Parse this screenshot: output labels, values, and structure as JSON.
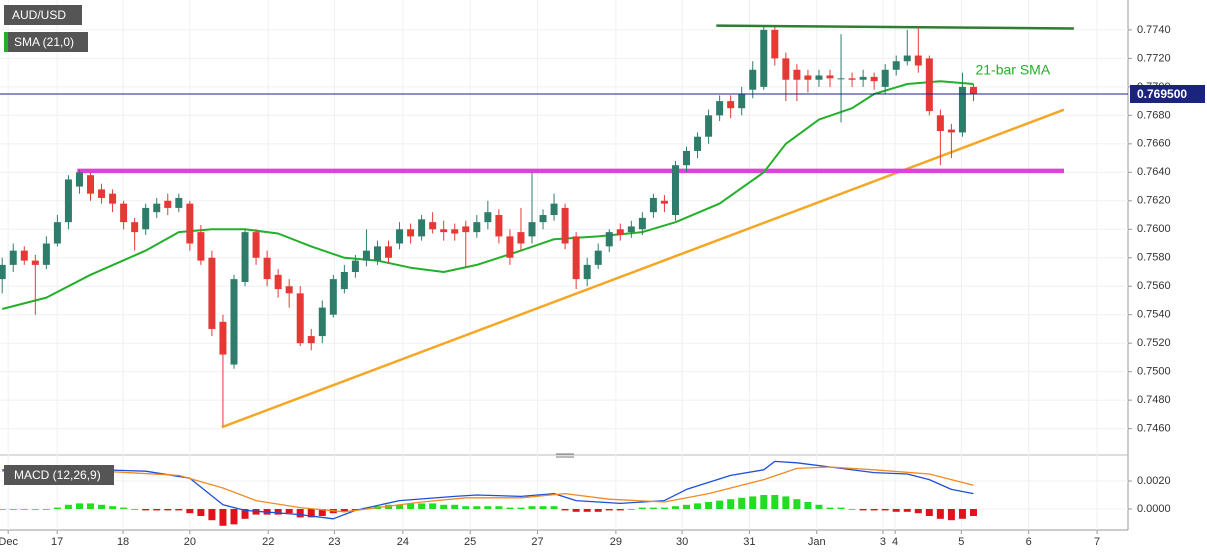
{
  "chart_data": {
    "type": "candlestick",
    "title": "AUD/USD",
    "indicator_label": "SMA (21,0)",
    "annotation": "21-bar SMA",
    "up_color": "#2e7d6b",
    "down_color": "#e53935",
    "grid": true,
    "xlim": [
      -0.2,
      102
    ],
    "xticks": [
      {
        "value": 0.54,
        "label": "Dec"
      },
      {
        "value": 4.98,
        "label": "17"
      },
      {
        "value": 10.95,
        "label": "18"
      },
      {
        "value": 17,
        "label": "20"
      },
      {
        "value": 24.1,
        "label": "22"
      },
      {
        "value": 30.1,
        "label": "23"
      },
      {
        "value": 36.3,
        "label": "24"
      },
      {
        "value": 42.4,
        "label": "25"
      },
      {
        "value": 48.5,
        "label": "27"
      },
      {
        "value": 55.6,
        "label": "29"
      },
      {
        "value": 61.6,
        "label": "30"
      },
      {
        "value": 67.7,
        "label": "31"
      },
      {
        "value": 73.8,
        "label": "Jan"
      },
      {
        "value": 79.8,
        "label": "3"
      },
      {
        "value": 80.9,
        "label": "4"
      },
      {
        "value": 86.9,
        "label": "5"
      },
      {
        "value": 93,
        "label": "6"
      },
      {
        "value": 99.2,
        "label": "7"
      }
    ],
    "ylim": [
      0.7445,
      0.7761
    ],
    "yticks": [
      {
        "value": 0.774,
        "label": "0.7740"
      },
      {
        "value": 0.772,
        "label": "0.7720"
      },
      {
        "value": 0.77,
        "label": "0.7700"
      },
      {
        "value": 0.768,
        "label": "0.7680"
      },
      {
        "value": 0.766,
        "label": "0.7660"
      },
      {
        "value": 0.764,
        "label": "0.7640"
      },
      {
        "value": 0.762,
        "label": "0.7620"
      },
      {
        "value": 0.76,
        "label": "0.7600"
      },
      {
        "value": 0.758,
        "label": "0.7580"
      },
      {
        "value": 0.756,
        "label": "0.7560"
      },
      {
        "value": 0.754,
        "label": "0.7540"
      },
      {
        "value": 0.752,
        "label": "0.7520"
      },
      {
        "value": 0.75,
        "label": "0.7500"
      },
      {
        "value": 0.748,
        "label": "0.7480"
      },
      {
        "value": 0.746,
        "label": "0.7460"
      }
    ],
    "ohlc": [
      [
        0.7565,
        0.758,
        0.7555,
        0.7575
      ],
      [
        0.7575,
        0.759,
        0.757,
        0.7585
      ],
      [
        0.7585,
        0.7588,
        0.7575,
        0.7578
      ],
      [
        0.7578,
        0.7582,
        0.754,
        0.7575
      ],
      [
        0.7575,
        0.7595,
        0.7572,
        0.759
      ],
      [
        0.759,
        0.761,
        0.7588,
        0.7605
      ],
      [
        0.7605,
        0.7638,
        0.76,
        0.7635
      ],
      [
        0.763,
        0.7642,
        0.7625,
        0.764
      ],
      [
        0.7638,
        0.764,
        0.762,
        0.7625
      ],
      [
        0.7628,
        0.7632,
        0.7618,
        0.7622
      ],
      [
        0.7625,
        0.7628,
        0.7612,
        0.7618
      ],
      [
        0.7618,
        0.762,
        0.76,
        0.7605
      ],
      [
        0.7605,
        0.7608,
        0.7585,
        0.7598
      ],
      [
        0.76,
        0.7618,
        0.7596,
        0.7615
      ],
      [
        0.7612,
        0.7622,
        0.7608,
        0.7618
      ],
      [
        0.762,
        0.7625,
        0.761,
        0.7615
      ],
      [
        0.7615,
        0.7625,
        0.7612,
        0.7622
      ],
      [
        0.7618,
        0.762,
        0.7585,
        0.759
      ],
      [
        0.7598,
        0.7603,
        0.7575,
        0.7578
      ],
      [
        0.758,
        0.7585,
        0.7525,
        0.753
      ],
      [
        0.7535,
        0.754,
        0.7462,
        0.7512
      ],
      [
        0.7505,
        0.7568,
        0.7502,
        0.7565
      ],
      [
        0.7563,
        0.76,
        0.756,
        0.7598
      ],
      [
        0.7598,
        0.76,
        0.7575,
        0.758
      ],
      [
        0.758,
        0.7585,
        0.756,
        0.7565
      ],
      [
        0.7568,
        0.7572,
        0.7552,
        0.7558
      ],
      [
        0.756,
        0.7565,
        0.7545,
        0.7555
      ],
      [
        0.7555,
        0.756,
        0.7518,
        0.752
      ],
      [
        0.7525,
        0.753,
        0.7515,
        0.752
      ],
      [
        0.7525,
        0.755,
        0.752,
        0.7545
      ],
      [
        0.754,
        0.7568,
        0.7538,
        0.7565
      ],
      [
        0.7558,
        0.7575,
        0.7555,
        0.757
      ],
      [
        0.757,
        0.7582,
        0.7566,
        0.7578
      ],
      [
        0.7578,
        0.76,
        0.7574,
        0.7585
      ],
      [
        0.7578,
        0.7592,
        0.7575,
        0.7588
      ],
      [
        0.7588,
        0.7592,
        0.7576,
        0.758
      ],
      [
        0.759,
        0.7605,
        0.7586,
        0.76
      ],
      [
        0.76,
        0.7604,
        0.759,
        0.7595
      ],
      [
        0.7595,
        0.761,
        0.7592,
        0.7607
      ],
      [
        0.7605,
        0.7612,
        0.7597,
        0.76
      ],
      [
        0.76,
        0.7606,
        0.7592,
        0.7598
      ],
      [
        0.76,
        0.7604,
        0.7592,
        0.7597
      ],
      [
        0.7602,
        0.7606,
        0.7573,
        0.7598
      ],
      [
        0.7598,
        0.761,
        0.7594,
        0.7605
      ],
      [
        0.7605,
        0.762,
        0.76,
        0.7612
      ],
      [
        0.761,
        0.7614,
        0.759,
        0.7595
      ],
      [
        0.7595,
        0.76,
        0.7575,
        0.758
      ],
      [
        0.7598,
        0.7615,
        0.7585,
        0.759
      ],
      [
        0.7595,
        0.764,
        0.759,
        0.7605
      ],
      [
        0.7605,
        0.7614,
        0.76,
        0.761
      ],
      [
        0.761,
        0.7625,
        0.7606,
        0.7618
      ],
      [
        0.7615,
        0.7618,
        0.7586,
        0.759
      ],
      [
        0.7595,
        0.7598,
        0.7558,
        0.7565
      ],
      [
        0.7565,
        0.758,
        0.756,
        0.7575
      ],
      [
        0.7575,
        0.759,
        0.7572,
        0.7585
      ],
      [
        0.7588,
        0.76,
        0.7584,
        0.7598
      ],
      [
        0.76,
        0.7604,
        0.7592,
        0.7596
      ],
      [
        0.7598,
        0.7606,
        0.7594,
        0.7602
      ],
      [
        0.76,
        0.7612,
        0.7596,
        0.7608
      ],
      [
        0.7612,
        0.7625,
        0.7608,
        0.7622
      ],
      [
        0.762,
        0.7624,
        0.7612,
        0.7618
      ],
      [
        0.761,
        0.7648,
        0.7606,
        0.7645
      ],
      [
        0.7645,
        0.7658,
        0.764,
        0.7655
      ],
      [
        0.7655,
        0.7668,
        0.765,
        0.7665
      ],
      [
        0.7665,
        0.7684,
        0.766,
        0.768
      ],
      [
        0.768,
        0.7694,
        0.7676,
        0.769
      ],
      [
        0.769,
        0.7694,
        0.7678,
        0.7685
      ],
      [
        0.7685,
        0.77,
        0.768,
        0.7695
      ],
      [
        0.7698,
        0.7718,
        0.7692,
        0.7712
      ],
      [
        0.77,
        0.7742,
        0.7698,
        0.774
      ],
      [
        0.774,
        0.7742,
        0.7715,
        0.772
      ],
      [
        0.772,
        0.7724,
        0.769,
        0.7705
      ],
      [
        0.7712,
        0.7716,
        0.769,
        0.7705
      ],
      [
        0.7708,
        0.7712,
        0.7696,
        0.7705
      ],
      [
        0.7705,
        0.7712,
        0.77,
        0.7708
      ],
      [
        0.7708,
        0.7712,
        0.77,
        0.7706
      ],
      [
        0.7706,
        0.7737,
        0.7675,
        0.7706
      ],
      [
        0.7706,
        0.771,
        0.77,
        0.7705
      ],
      [
        0.7705,
        0.7712,
        0.77,
        0.7707
      ],
      [
        0.7707,
        0.771,
        0.7698,
        0.7704
      ],
      [
        0.77,
        0.7716,
        0.7695,
        0.7712
      ],
      [
        0.7712,
        0.7722,
        0.7708,
        0.7718
      ],
      [
        0.7718,
        0.774,
        0.7715,
        0.7722
      ],
      [
        0.7722,
        0.7742,
        0.771,
        0.7715
      ],
      [
        0.772,
        0.7722,
        0.768,
        0.7683
      ],
      [
        0.768,
        0.7684,
        0.7645,
        0.7669
      ],
      [
        0.767,
        0.7674,
        0.765,
        0.7668
      ],
      [
        0.7668,
        0.771,
        0.7665,
        0.77
      ],
      [
        0.77,
        0.7702,
        0.769,
        0.7695
      ]
    ],
    "sma": {
      "color": "#22b02a",
      "x": [
        0,
        4,
        8,
        13,
        16,
        19,
        22,
        25,
        28,
        31,
        34,
        37,
        40,
        43,
        47,
        50,
        54,
        58,
        61,
        65,
        69,
        71,
        74,
        77,
        79,
        82,
        85,
        88
      ],
      "values": [
        0.7544,
        0.7552,
        0.7568,
        0.7585,
        0.7598,
        0.76,
        0.76,
        0.7597,
        0.7588,
        0.758,
        0.7578,
        0.7573,
        0.757,
        0.7575,
        0.7585,
        0.7593,
        0.7595,
        0.7598,
        0.7605,
        0.7618,
        0.764,
        0.766,
        0.7677,
        0.7685,
        0.7695,
        0.7702,
        0.7704,
        0.7702
      ]
    },
    "trendlines": [
      {
        "color": "#2e7d32",
        "width": 2.5,
        "x": [
          64.7,
          97.1
        ],
        "values": [
          0.7743,
          0.7741
        ]
      },
      {
        "color": "#f5a623",
        "width": 2.5,
        "x": [
          19.9,
          96.2
        ],
        "values": [
          0.7461,
          0.7684
        ]
      },
      {
        "color": "#e040e0",
        "width": 4.5,
        "x": [
          6.8,
          96.2
        ],
        "values": [
          0.7641,
          0.7641
        ]
      }
    ],
    "last_price": {
      "value": 0.7695,
      "label": "0.769500",
      "color": "#1a237e"
    },
    "macd": {
      "label": "MACD (12,26,9)",
      "ylim": [
        -0.0015,
        0.0035
      ],
      "yticks": [
        {
          "value": 0.002,
          "label": "0.0020"
        },
        {
          "value": 0,
          "label": "0.0000"
        }
      ],
      "macd": {
        "color": "#1e4fd8",
        "x": [
          0,
          9,
          13,
          17,
          20,
          22,
          27,
          30,
          32,
          36,
          41,
          43,
          47,
          50,
          52,
          56,
          60,
          62,
          66,
          69,
          70,
          72,
          76,
          79,
          82,
          84,
          86,
          88
        ],
        "values": [
          0.0028,
          0.0028,
          0.0027,
          0.0022,
          0.0003,
          -0.0001,
          -0.0004,
          -0.0007,
          -0.0001,
          0.0006,
          0.0009,
          0.001,
          0.0009,
          0.0011,
          0.0006,
          0.0004,
          0.0006,
          0.0014,
          0.0024,
          0.0028,
          0.0034,
          0.0033,
          0.0029,
          0.0026,
          0.0025,
          0.0021,
          0.0014,
          0.0011
        ]
      },
      "signal": {
        "color": "#f08a24",
        "x": [
          0,
          9,
          16,
          20,
          23,
          27,
          31,
          34,
          38,
          42,
          47,
          51,
          55,
          60,
          64,
          69,
          72,
          75,
          79,
          84,
          88
        ],
        "values": [
          0.0027,
          0.0027,
          0.0024,
          0.0015,
          0.0006,
          0.0001,
          -0.0002,
          0.0001,
          0.0005,
          0.0008,
          0.0008,
          0.0011,
          0.0007,
          0.0005,
          0.0011,
          0.0021,
          0.0029,
          0.003,
          0.0028,
          0.0025,
          0.0017
        ]
      },
      "histogram": {
        "up_color": "#22dd22",
        "down_color": "#e3111b",
        "values": [
          0,
          0,
          0,
          0,
          0,
          0.0001,
          0.0003,
          0.0004,
          0.0004,
          0.0003,
          0.0002,
          0.0001,
          0,
          -0.0001,
          -0.0001,
          -0.0001,
          -0.0001,
          -0.0003,
          -0.0005,
          -0.0008,
          -0.0012,
          -0.0011,
          -0.0007,
          -0.0004,
          -0.0004,
          -0.0004,
          -0.0003,
          -0.0006,
          -0.0006,
          -0.0005,
          -0.0003,
          -0.0002,
          -0.0001,
          0.0001,
          0.0002,
          0.0003,
          0.0003,
          0.0004,
          0.0004,
          0.0004,
          0.0003,
          0.0003,
          0.0002,
          0.0002,
          0.0002,
          0.0002,
          0.0001,
          0.0001,
          0.0002,
          0.0002,
          0.0002,
          -0.0001,
          -0.0002,
          -0.0002,
          -0.0002,
          -0.0001,
          -0.0001,
          0,
          0.0001,
          0.0001,
          0.0001,
          0.0002,
          0.0003,
          0.0004,
          0.0005,
          0.0006,
          0.0007,
          0.0008,
          0.0009,
          0.001,
          0.001,
          0.0009,
          0.0007,
          0.0005,
          0.0003,
          0.0001,
          0.0001,
          0,
          -0.0001,
          -0.0001,
          -0.0001,
          -0.0002,
          -0.0002,
          -0.0003,
          -0.0005,
          -0.0007,
          -0.0008,
          -0.0007,
          -0.0005
        ]
      }
    }
  }
}
